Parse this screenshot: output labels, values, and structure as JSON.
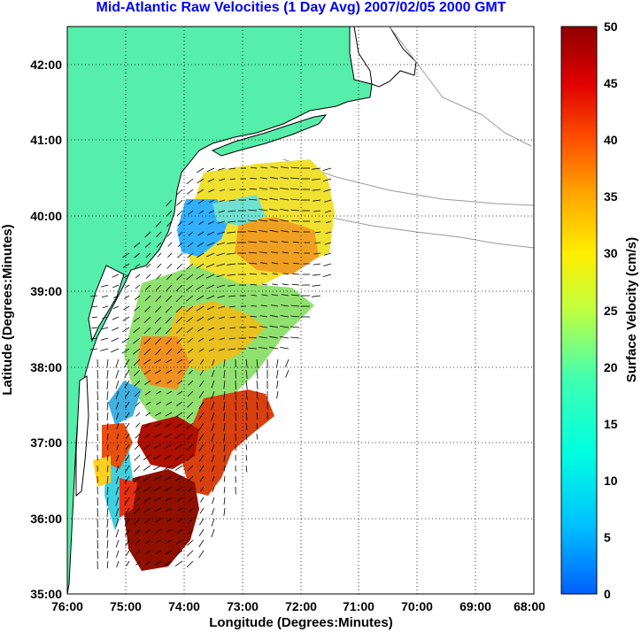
{
  "title": "Mid-Atlantic Raw Velocities (1 Day Avg) 2007/02/05 2000 GMT",
  "x_axis_label": "Longitude (Degrees:Minutes)",
  "y_axis_label": "Latitude (Degrees:Minutes)",
  "x_ticks": [
    "76:00",
    "75:00",
    "74:00",
    "73:00",
    "72:00",
    "71:00",
    "70:00",
    "69:00",
    "68:00"
  ],
  "y_ticks": [
    "42:00",
    "41:00",
    "40:00",
    "39:00",
    "38:00",
    "37:00",
    "36:00",
    "35:00"
  ],
  "colorbar": {
    "label": "Surface Velocity (cm/s)",
    "ticks": [
      "50",
      "45",
      "40",
      "35",
      "30",
      "25",
      "20",
      "15",
      "10",
      "5",
      "0"
    ],
    "min": 0,
    "max": 50
  },
  "map": {
    "lon_range": [
      -76,
      -68
    ],
    "lat_range": [
      35,
      42.5
    ],
    "land_color": "#55eeaa",
    "coast_color": "#000000",
    "bathy_color": "#999999",
    "grid": "dotted"
  }
}
